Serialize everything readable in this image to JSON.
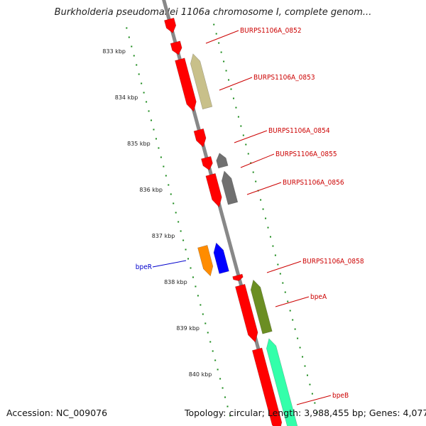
{
  "title": "Burkholderia pseudomallei 1106a chromosome I, complete genom...",
  "footer": {
    "accession": "Accession: NC_009076",
    "stats": "Topology: circular; Length: 3,988,455 bp; Genes: 4,077"
  },
  "colors": {
    "backbone": "#888888",
    "ruler": "#1a8a1a",
    "label_red": "#cc0000",
    "label_blue": "#0000cc"
  },
  "ruler": {
    "unit": "kbp",
    "ticks": [
      "833 kbp",
      "834 kbp",
      "835 kbp",
      "836 kbp",
      "837 kbp",
      "838 kbp",
      "839 kbp",
      "840 kbp"
    ]
  },
  "genes": [
    {
      "name": "top-cut",
      "strand": "+",
      "color": "#ff0000",
      "start": 832.55,
      "end": 832.85
    },
    {
      "name": "g-small-1",
      "strand": "+",
      "color": "#ff0000",
      "start": 833.05,
      "end": 833.32
    },
    {
      "name": "g-0852-red",
      "strand": "+",
      "color": "#ff0000",
      "start": 833.42,
      "end": 834.55
    },
    {
      "name": "g-0853-olive",
      "strand": "-",
      "color": "#c8c08a",
      "start": 833.38,
      "end": 834.55
    },
    {
      "name": "g-0854",
      "strand": "+",
      "color": "#ff0000",
      "start": 834.95,
      "end": 835.32
    },
    {
      "name": "g-0855-red",
      "strand": "+",
      "color": "#ff0000",
      "start": 835.55,
      "end": 835.82
    },
    {
      "name": "g-0855-gray",
      "strand": "-",
      "color": "#707070",
      "start": 835.53,
      "end": 835.83
    },
    {
      "name": "g-0856-red",
      "strand": "+",
      "color": "#ff0000",
      "start": 835.92,
      "end": 836.62
    },
    {
      "name": "g-0856-gray",
      "strand": "-",
      "color": "#707070",
      "start": 835.92,
      "end": 836.62
    },
    {
      "name": "bpeR-orange",
      "strand": "+",
      "color": "#ff8c00",
      "start": 837.33,
      "end": 837.97
    },
    {
      "name": "bpeR-blue",
      "strand": "-",
      "color": "#0000ff",
      "start": 837.33,
      "end": 837.97
    },
    {
      "name": "g-0858",
      "strand": "+",
      "color": "#ff0000",
      "start": 838.1,
      "end": 838.22
    },
    {
      "name": "bpeA-red",
      "strand": "+",
      "color": "#ff0000",
      "start": 838.32,
      "end": 839.55
    },
    {
      "name": "bpeA-olive",
      "strand": "-",
      "color": "#6b8e23",
      "start": 838.28,
      "end": 839.42
    },
    {
      "name": "bpeB-red",
      "strand": "+",
      "color": "#ff0000",
      "start": 839.7,
      "end": 841.5
    },
    {
      "name": "bpeB-green",
      "strand": "-",
      "color": "#33ffaa",
      "start": 839.55,
      "end": 841.5
    }
  ],
  "labels": [
    {
      "text": "BURPS1106A_0852",
      "kind": "red"
    },
    {
      "text": "BURPS1106A_0853",
      "kind": "red"
    },
    {
      "text": "BURPS1106A_0854",
      "kind": "red"
    },
    {
      "text": "BURPS1106A_0855",
      "kind": "red"
    },
    {
      "text": "BURPS1106A_0856",
      "kind": "red"
    },
    {
      "text": "BURPS1106A_0858",
      "kind": "red"
    },
    {
      "text": "bpeA",
      "kind": "red"
    },
    {
      "text": "bpeB",
      "kind": "red"
    },
    {
      "text": "bpeR",
      "kind": "blue"
    }
  ]
}
